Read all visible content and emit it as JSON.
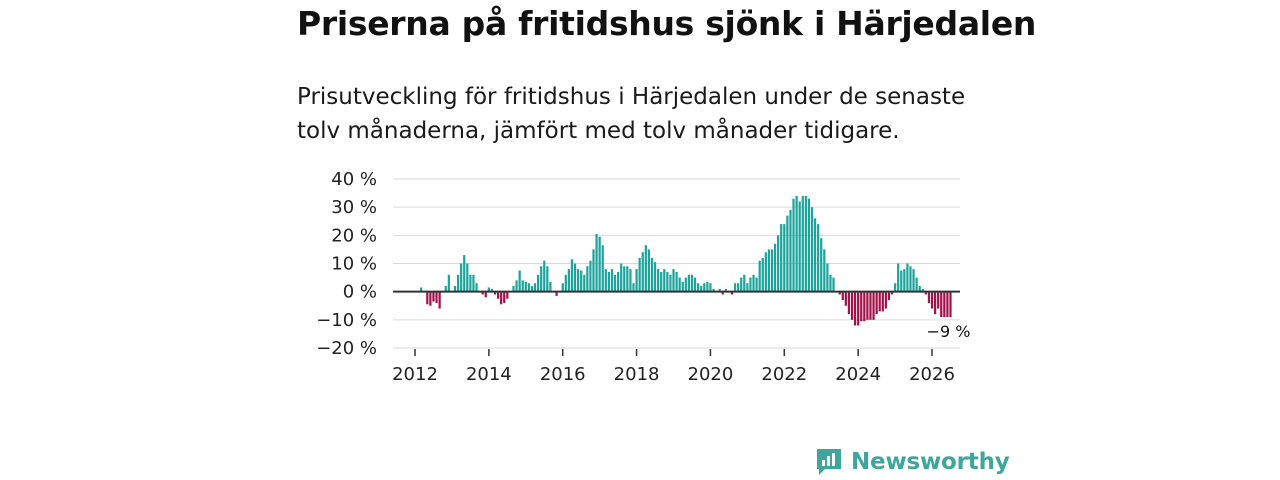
{
  "title": "Priserna på fritidshus sjönk i Härjedalen",
  "subtitle": "Prisutveckling för fritidshus i Härjedalen under de senaste tolv månaderna, jämfört med tolv månader tidigare.",
  "brand": {
    "name": "Newsworthy",
    "icon": "newsworthy-logo-icon",
    "color": "#3ea69c"
  },
  "colors": {
    "positive": "#1ba39c",
    "negative": "#a3104a",
    "grid": "#d9d9d9",
    "zero_line": "#333333"
  },
  "chart_data": {
    "type": "bar",
    "x_start": "2012-01",
    "x_ticks": [
      "2012",
      "2014",
      "2016",
      "2018",
      "2020",
      "2022",
      "2024",
      "2026"
    ],
    "y_ticks": [
      "40 %",
      "30 %",
      "20 %",
      "10 %",
      "0 %",
      "−10 %",
      "−20 %"
    ],
    "ylim": [
      -20,
      40
    ],
    "unit": "%",
    "annotation": "−9 %",
    "values": [
      0,
      0,
      1.5,
      0,
      -4.5,
      -5,
      -3.5,
      -4,
      -6,
      0,
      2,
      6,
      0,
      2,
      6,
      10,
      13,
      10,
      6,
      6,
      3,
      0,
      -1,
      -2,
      1.5,
      1,
      -1,
      -2.5,
      -4.5,
      -4,
      -2.5,
      0,
      2,
      4,
      7.5,
      4,
      3.5,
      3,
      2,
      3,
      6,
      9,
      11,
      9,
      3.5,
      0,
      -1.5,
      0,
      3,
      6,
      8,
      11.5,
      10,
      8,
      7.5,
      6,
      9,
      11,
      15,
      20.5,
      19.5,
      16.5,
      8,
      7,
      8,
      6,
      7,
      10,
      9,
      9,
      8,
      3,
      8,
      12,
      14,
      16.5,
      15,
      12,
      10.5,
      8,
      7,
      8,
      7,
      6,
      8,
      7,
      5,
      3.5,
      5,
      6,
      6,
      5,
      3,
      2,
      3,
      3.5,
      3,
      1,
      0,
      1,
      -1,
      1,
      0,
      -1,
      3,
      3,
      5,
      6,
      3,
      5,
      6,
      5,
      11,
      12,
      14,
      15,
      15,
      17,
      20,
      24,
      24,
      27,
      29,
      33,
      34,
      32,
      34,
      34,
      33,
      30,
      26,
      24,
      19,
      15,
      10,
      6,
      5,
      0,
      -1,
      -3,
      -5,
      -8,
      -10,
      -12,
      -12,
      -10.5,
      -10.5,
      -10,
      -10,
      -10,
      -8,
      -7,
      -7,
      -6,
      -3,
      -1,
      3,
      10,
      7.5,
      8,
      10,
      9,
      8,
      5,
      2,
      1,
      -1,
      -4,
      -6,
      -8,
      -6,
      -9,
      -9,
      -9,
      -9
    ]
  }
}
